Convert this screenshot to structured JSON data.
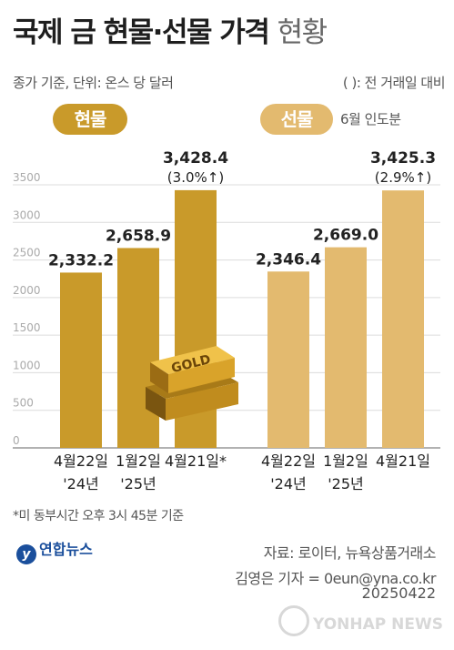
{
  "header": {
    "title_bold": "국제 금 현물·선물 가격",
    "title_light": "현황",
    "subtitle_left": "종가 기준, 단위: 온스 당 달러",
    "subtitle_right": "( ): 전 거래일 대비"
  },
  "badges": {
    "spot": "현물",
    "futures": "선물",
    "futures_note": "6월 인도분"
  },
  "chart_data": {
    "type": "bar",
    "ylim": [
      0,
      3500
    ],
    "yticks": [
      "0",
      "500",
      "1000",
      "1500",
      "2000",
      "2500",
      "3000",
      "3500"
    ],
    "groups": [
      {
        "name": "현물",
        "color": "#c99a2a",
        "bars": [
          {
            "date_line1": "4월22일",
            "date_line2": "'24년",
            "value": 2332.2,
            "label": "2,332.2",
            "change": ""
          },
          {
            "date_line1": "1월2일",
            "date_line2": "'25년",
            "value": 2658.9,
            "label": "2,658.9",
            "change": ""
          },
          {
            "date_line1": "4월21일*",
            "date_line2": "",
            "value": 3428.4,
            "label": "3,428.4",
            "change": "(3.0%↑)"
          }
        ]
      },
      {
        "name": "선물",
        "color": "#e3ba6f",
        "bars": [
          {
            "date_line1": "4월22일",
            "date_line2": "'24년",
            "value": 2346.4,
            "label": "2,346.4",
            "change": ""
          },
          {
            "date_line1": "1월2일",
            "date_line2": "'25년",
            "value": 2669.0,
            "label": "2,669.0",
            "change": ""
          },
          {
            "date_line1": "4월21일",
            "date_line2": "",
            "value": 3425.3,
            "label": "3,425.3",
            "change": "(2.9%↑)"
          }
        ]
      }
    ]
  },
  "illustration": {
    "gold_bar_text": "GOLD"
  },
  "footer": {
    "footnote": "*미 동부시간 오후 3시 45분 기준",
    "logo_text": "연합뉴스",
    "source": "자료: 로이터, 뉴욕상품거래소",
    "credit": "김영은 기자 = 0eun@yna.co.kr",
    "date": "20250422",
    "watermark": "YONHAP NEWS"
  }
}
